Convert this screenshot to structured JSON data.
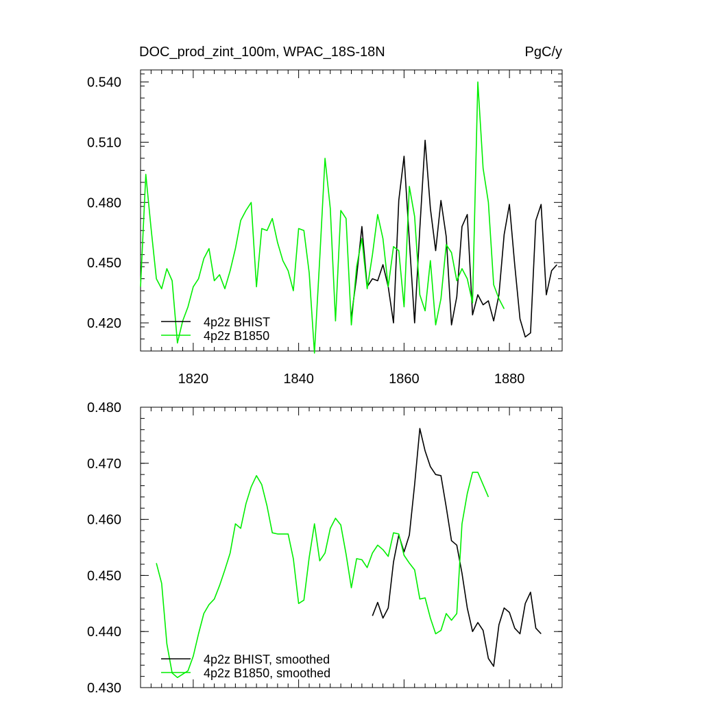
{
  "title_left": "DOC_prod_zint_100m, WPAC_18S-18N",
  "title_right": "PgC/y",
  "colors": {
    "bhist": "#000000",
    "b1850": "#00ee00"
  },
  "chart_data": [
    {
      "type": "line",
      "name": "annual",
      "xlim": [
        1810,
        1890
      ],
      "ylim": [
        0.406,
        0.546
      ],
      "xticks": [
        1820,
        1840,
        1860,
        1880
      ],
      "yticks": [
        0.42,
        0.45,
        0.48,
        0.51,
        0.54
      ],
      "ytick_labels": [
        "0.420",
        "0.450",
        "0.480",
        "0.510",
        "0.540"
      ],
      "legend_position": "bottom-left",
      "series": [
        {
          "name": "4p2z BHIST",
          "color_key": "bhist",
          "x": [
            1850,
            1851,
            1852,
            1853,
            1854,
            1855,
            1856,
            1857,
            1858,
            1859,
            1860,
            1861,
            1862,
            1863,
            1864,
            1865,
            1866,
            1867,
            1868,
            1869,
            1870,
            1871,
            1872,
            1873,
            1874,
            1875,
            1876,
            1877,
            1878,
            1879,
            1880,
            1881,
            1882,
            1883,
            1884,
            1885,
            1886,
            1887,
            1888,
            1889
          ],
          "y": [
            0.423,
            0.443,
            0.468,
            0.438,
            0.442,
            0.441,
            0.449,
            0.438,
            0.42,
            0.481,
            0.503,
            0.461,
            0.42,
            0.467,
            0.511,
            0.477,
            0.456,
            0.481,
            0.463,
            0.419,
            0.433,
            0.468,
            0.474,
            0.424,
            0.434,
            0.429,
            0.431,
            0.421,
            0.434,
            0.464,
            0.479,
            0.449,
            0.422,
            0.413,
            0.415,
            0.471,
            0.479,
            0.434,
            0.446,
            0.449
          ]
        },
        {
          "name": "4p2z B1850",
          "color_key": "b1850",
          "x": [
            1810,
            1811,
            1812,
            1813,
            1814,
            1815,
            1816,
            1817,
            1818,
            1819,
            1820,
            1821,
            1822,
            1823,
            1824,
            1825,
            1826,
            1827,
            1828,
            1829,
            1830,
            1831,
            1832,
            1833,
            1834,
            1835,
            1836,
            1837,
            1838,
            1839,
            1840,
            1841,
            1842,
            1843,
            1844,
            1845,
            1846,
            1847,
            1848,
            1849,
            1850,
            1851,
            1852,
            1853,
            1854,
            1855,
            1856,
            1857,
            1858,
            1859,
            1860,
            1861,
            1862,
            1863,
            1864,
            1865,
            1866,
            1867,
            1868,
            1869,
            1870,
            1871,
            1872,
            1873,
            1874,
            1875,
            1876,
            1877,
            1878,
            1879
          ],
          "y": [
            0.438,
            0.494,
            0.467,
            0.442,
            0.437,
            0.447,
            0.441,
            0.41,
            0.421,
            0.428,
            0.438,
            0.442,
            0.452,
            0.457,
            0.441,
            0.444,
            0.437,
            0.446,
            0.457,
            0.471,
            0.476,
            0.48,
            0.438,
            0.467,
            0.466,
            0.472,
            0.46,
            0.451,
            0.446,
            0.436,
            0.467,
            0.466,
            0.445,
            0.405,
            0.452,
            0.502,
            0.477,
            0.421,
            0.476,
            0.472,
            0.419,
            0.448,
            0.462,
            0.437,
            0.454,
            0.474,
            0.462,
            0.438,
            0.458,
            0.456,
            0.428,
            0.488,
            0.473,
            0.434,
            0.426,
            0.451,
            0.419,
            0.432,
            0.459,
            0.455,
            0.441,
            0.447,
            0.442,
            0.43,
            0.54,
            0.497,
            0.48,
            0.439,
            0.432,
            0.427
          ]
        }
      ]
    },
    {
      "type": "line",
      "name": "smoothed",
      "xlim": [
        1810,
        1890
      ],
      "ylim": [
        0.43,
        0.48
      ],
      "xticks": [
        1820,
        1840,
        1860,
        1880
      ],
      "yticks": [
        0.43,
        0.44,
        0.45,
        0.46,
        0.47,
        0.48
      ],
      "ytick_labels": [
        "0.430",
        "0.440",
        "0.450",
        "0.460",
        "0.470",
        "0.480"
      ],
      "legend_position": "bottom-left",
      "series": [
        {
          "name": "4p2z BHIST, smoothed",
          "color_key": "bhist",
          "x": [
            1854,
            1855,
            1856,
            1857,
            1858,
            1859,
            1860,
            1861,
            1862,
            1863,
            1864,
            1865,
            1866,
            1867,
            1868,
            1869,
            1870,
            1871,
            1872,
            1873,
            1874,
            1875,
            1876,
            1877,
            1878,
            1879,
            1880,
            1881,
            1882,
            1883,
            1884,
            1885,
            1886
          ],
          "y": [
            0.4428,
            0.4452,
            0.4424,
            0.4442,
            0.4524,
            0.4572,
            0.4542,
            0.4572,
            0.4662,
            0.4762,
            0.4722,
            0.4694,
            0.468,
            0.4678,
            0.4622,
            0.4562,
            0.4554,
            0.4504,
            0.4442,
            0.44,
            0.4416,
            0.4402,
            0.4352,
            0.4338,
            0.4412,
            0.4442,
            0.4434,
            0.4406,
            0.4396,
            0.445,
            0.447,
            0.4406,
            0.4396
          ]
        },
        {
          "name": "4p2z B1850, smoothed",
          "color_key": "b1850",
          "x": [
            1813,
            1814,
            1815,
            1816,
            1817,
            1818,
            1819,
            1820,
            1821,
            1822,
            1823,
            1824,
            1825,
            1826,
            1827,
            1828,
            1829,
            1830,
            1831,
            1832,
            1833,
            1834,
            1835,
            1836,
            1837,
            1838,
            1839,
            1840,
            1841,
            1842,
            1843,
            1844,
            1845,
            1846,
            1847,
            1848,
            1849,
            1850,
            1851,
            1852,
            1853,
            1854,
            1855,
            1856,
            1857,
            1858,
            1859,
            1860,
            1861,
            1862,
            1863,
            1864,
            1865,
            1866,
            1867,
            1868,
            1869,
            1870,
            1871,
            1872,
            1873,
            1874,
            1875,
            1876
          ],
          "y": [
            0.4522,
            0.4486,
            0.4378,
            0.4326,
            0.4318,
            0.4324,
            0.433,
            0.4356,
            0.4396,
            0.4432,
            0.4448,
            0.4458,
            0.4482,
            0.451,
            0.454,
            0.4592,
            0.4584,
            0.4628,
            0.4658,
            0.4678,
            0.4662,
            0.4624,
            0.4576,
            0.4574,
            0.4574,
            0.4574,
            0.453,
            0.445,
            0.4456,
            0.4532,
            0.4592,
            0.4526,
            0.454,
            0.4584,
            0.4602,
            0.459,
            0.4538,
            0.4478,
            0.453,
            0.4528,
            0.4514,
            0.454,
            0.4554,
            0.4546,
            0.4534,
            0.4576,
            0.4574,
            0.4536,
            0.4522,
            0.451,
            0.4458,
            0.446,
            0.4424,
            0.4396,
            0.4402,
            0.4432,
            0.442,
            0.4432,
            0.4592,
            0.4646,
            0.4684,
            0.4684,
            0.4662,
            0.464
          ]
        }
      ]
    }
  ]
}
